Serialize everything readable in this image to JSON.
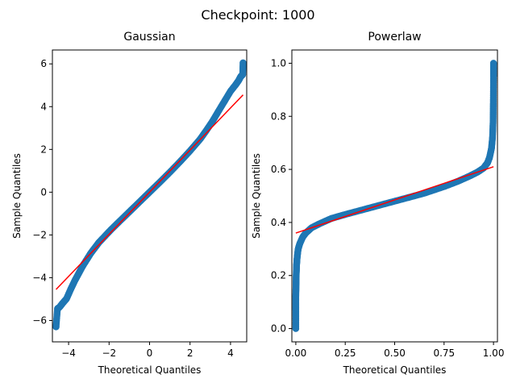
{
  "figure": {
    "suptitle": "Checkpoint: 1000"
  },
  "colors": {
    "points": "#1f77b4",
    "fit_line": "#ff0000",
    "axes": "#000000"
  },
  "chart_data": [
    {
      "type": "scatter",
      "title": "Gaussian",
      "xlabel": "Theoretical Quantiles",
      "ylabel": "Sample Quantiles",
      "xlim": [
        -4.8,
        4.8
      ],
      "ylim": [
        -7.0,
        6.65
      ],
      "xticks": [
        -4,
        -2,
        0,
        2,
        4
      ],
      "yticks": [
        -6,
        -4,
        -2,
        0,
        2,
        4,
        6
      ],
      "xtick_labels": [
        "−4",
        "−2",
        "0",
        "2",
        "4"
      ],
      "ytick_labels": [
        "−6",
        "−4",
        "−2",
        "0",
        "2",
        "4",
        "6"
      ],
      "grid": false,
      "series": [
        {
          "kind": "qq-points",
          "x": [
            -4.62,
            -4.55,
            -4.45,
            -4.3,
            -4.1,
            -3.9,
            -3.7,
            -3.5,
            -3.3,
            -3.1,
            -2.9,
            -2.7,
            -2.5,
            -2.2,
            -1.9,
            -1.5,
            -1.0,
            -0.5,
            0.0,
            0.5,
            1.0,
            1.5,
            2.0,
            2.5,
            2.8,
            3.1,
            3.4,
            3.7,
            4.0,
            4.25,
            4.4,
            4.5,
            4.6,
            4.62
          ],
          "y": [
            -6.3,
            -5.45,
            -5.38,
            -5.2,
            -4.98,
            -4.55,
            -4.15,
            -3.8,
            -3.45,
            -3.15,
            -2.85,
            -2.6,
            -2.35,
            -2.05,
            -1.75,
            -1.38,
            -0.92,
            -0.46,
            0.0,
            0.46,
            0.93,
            1.42,
            1.93,
            2.48,
            2.88,
            3.3,
            3.78,
            4.25,
            4.72,
            5.02,
            5.22,
            5.4,
            5.5,
            6.05
          ],
          "outliers": [
            [
              4.62,
              6.05
            ],
            [
              -4.62,
              -6.3
            ],
            [
              4.6,
              5.5
            ]
          ]
        },
        {
          "kind": "fit-line",
          "x": [
            -4.62,
            4.62
          ],
          "y": [
            -4.55,
            4.55
          ]
        }
      ]
    },
    {
      "type": "scatter",
      "title": "Powerlaw",
      "xlabel": "Theoretical Quantiles",
      "ylabel": "Sample Quantiles",
      "xlim": [
        -0.02,
        1.02
      ],
      "ylim": [
        -0.05,
        1.05
      ],
      "xticks": [
        0.0,
        0.25,
        0.5,
        0.75,
        1.0
      ],
      "yticks": [
        0.0,
        0.2,
        0.4,
        0.6,
        0.8,
        1.0
      ],
      "xtick_labels": [
        "0.00",
        "0.25",
        "0.50",
        "0.75",
        "1.00"
      ],
      "ytick_labels": [
        "0.0",
        "0.2",
        "0.4",
        "0.6",
        "0.8",
        "1.0"
      ],
      "grid": false,
      "series": [
        {
          "kind": "qq-points",
          "x": [
            0.0,
            0.0,
            0.0,
            0.001,
            0.002,
            0.004,
            0.007,
            0.012,
            0.02,
            0.035,
            0.05,
            0.08,
            0.12,
            0.18,
            0.25,
            0.35,
            0.45,
            0.55,
            0.65,
            0.75,
            0.82,
            0.88,
            0.92,
            0.95,
            0.97,
            0.98,
            0.99,
            0.995,
            0.998,
            0.999,
            1.0,
            1.0
          ],
          "y": [
            0.0,
            0.07,
            0.12,
            0.16,
            0.2,
            0.24,
            0.27,
            0.3,
            0.32,
            0.345,
            0.36,
            0.38,
            0.395,
            0.415,
            0.43,
            0.45,
            0.47,
            0.49,
            0.51,
            0.535,
            0.555,
            0.575,
            0.59,
            0.605,
            0.625,
            0.645,
            0.68,
            0.72,
            0.78,
            0.85,
            0.95,
            1.0
          ],
          "outliers": [
            [
              0.0,
              0.0
            ],
            [
              1.0,
              1.0
            ]
          ]
        },
        {
          "kind": "fit-line",
          "x": [
            0.0,
            1.0
          ],
          "y": [
            0.36,
            0.61
          ]
        }
      ]
    }
  ]
}
